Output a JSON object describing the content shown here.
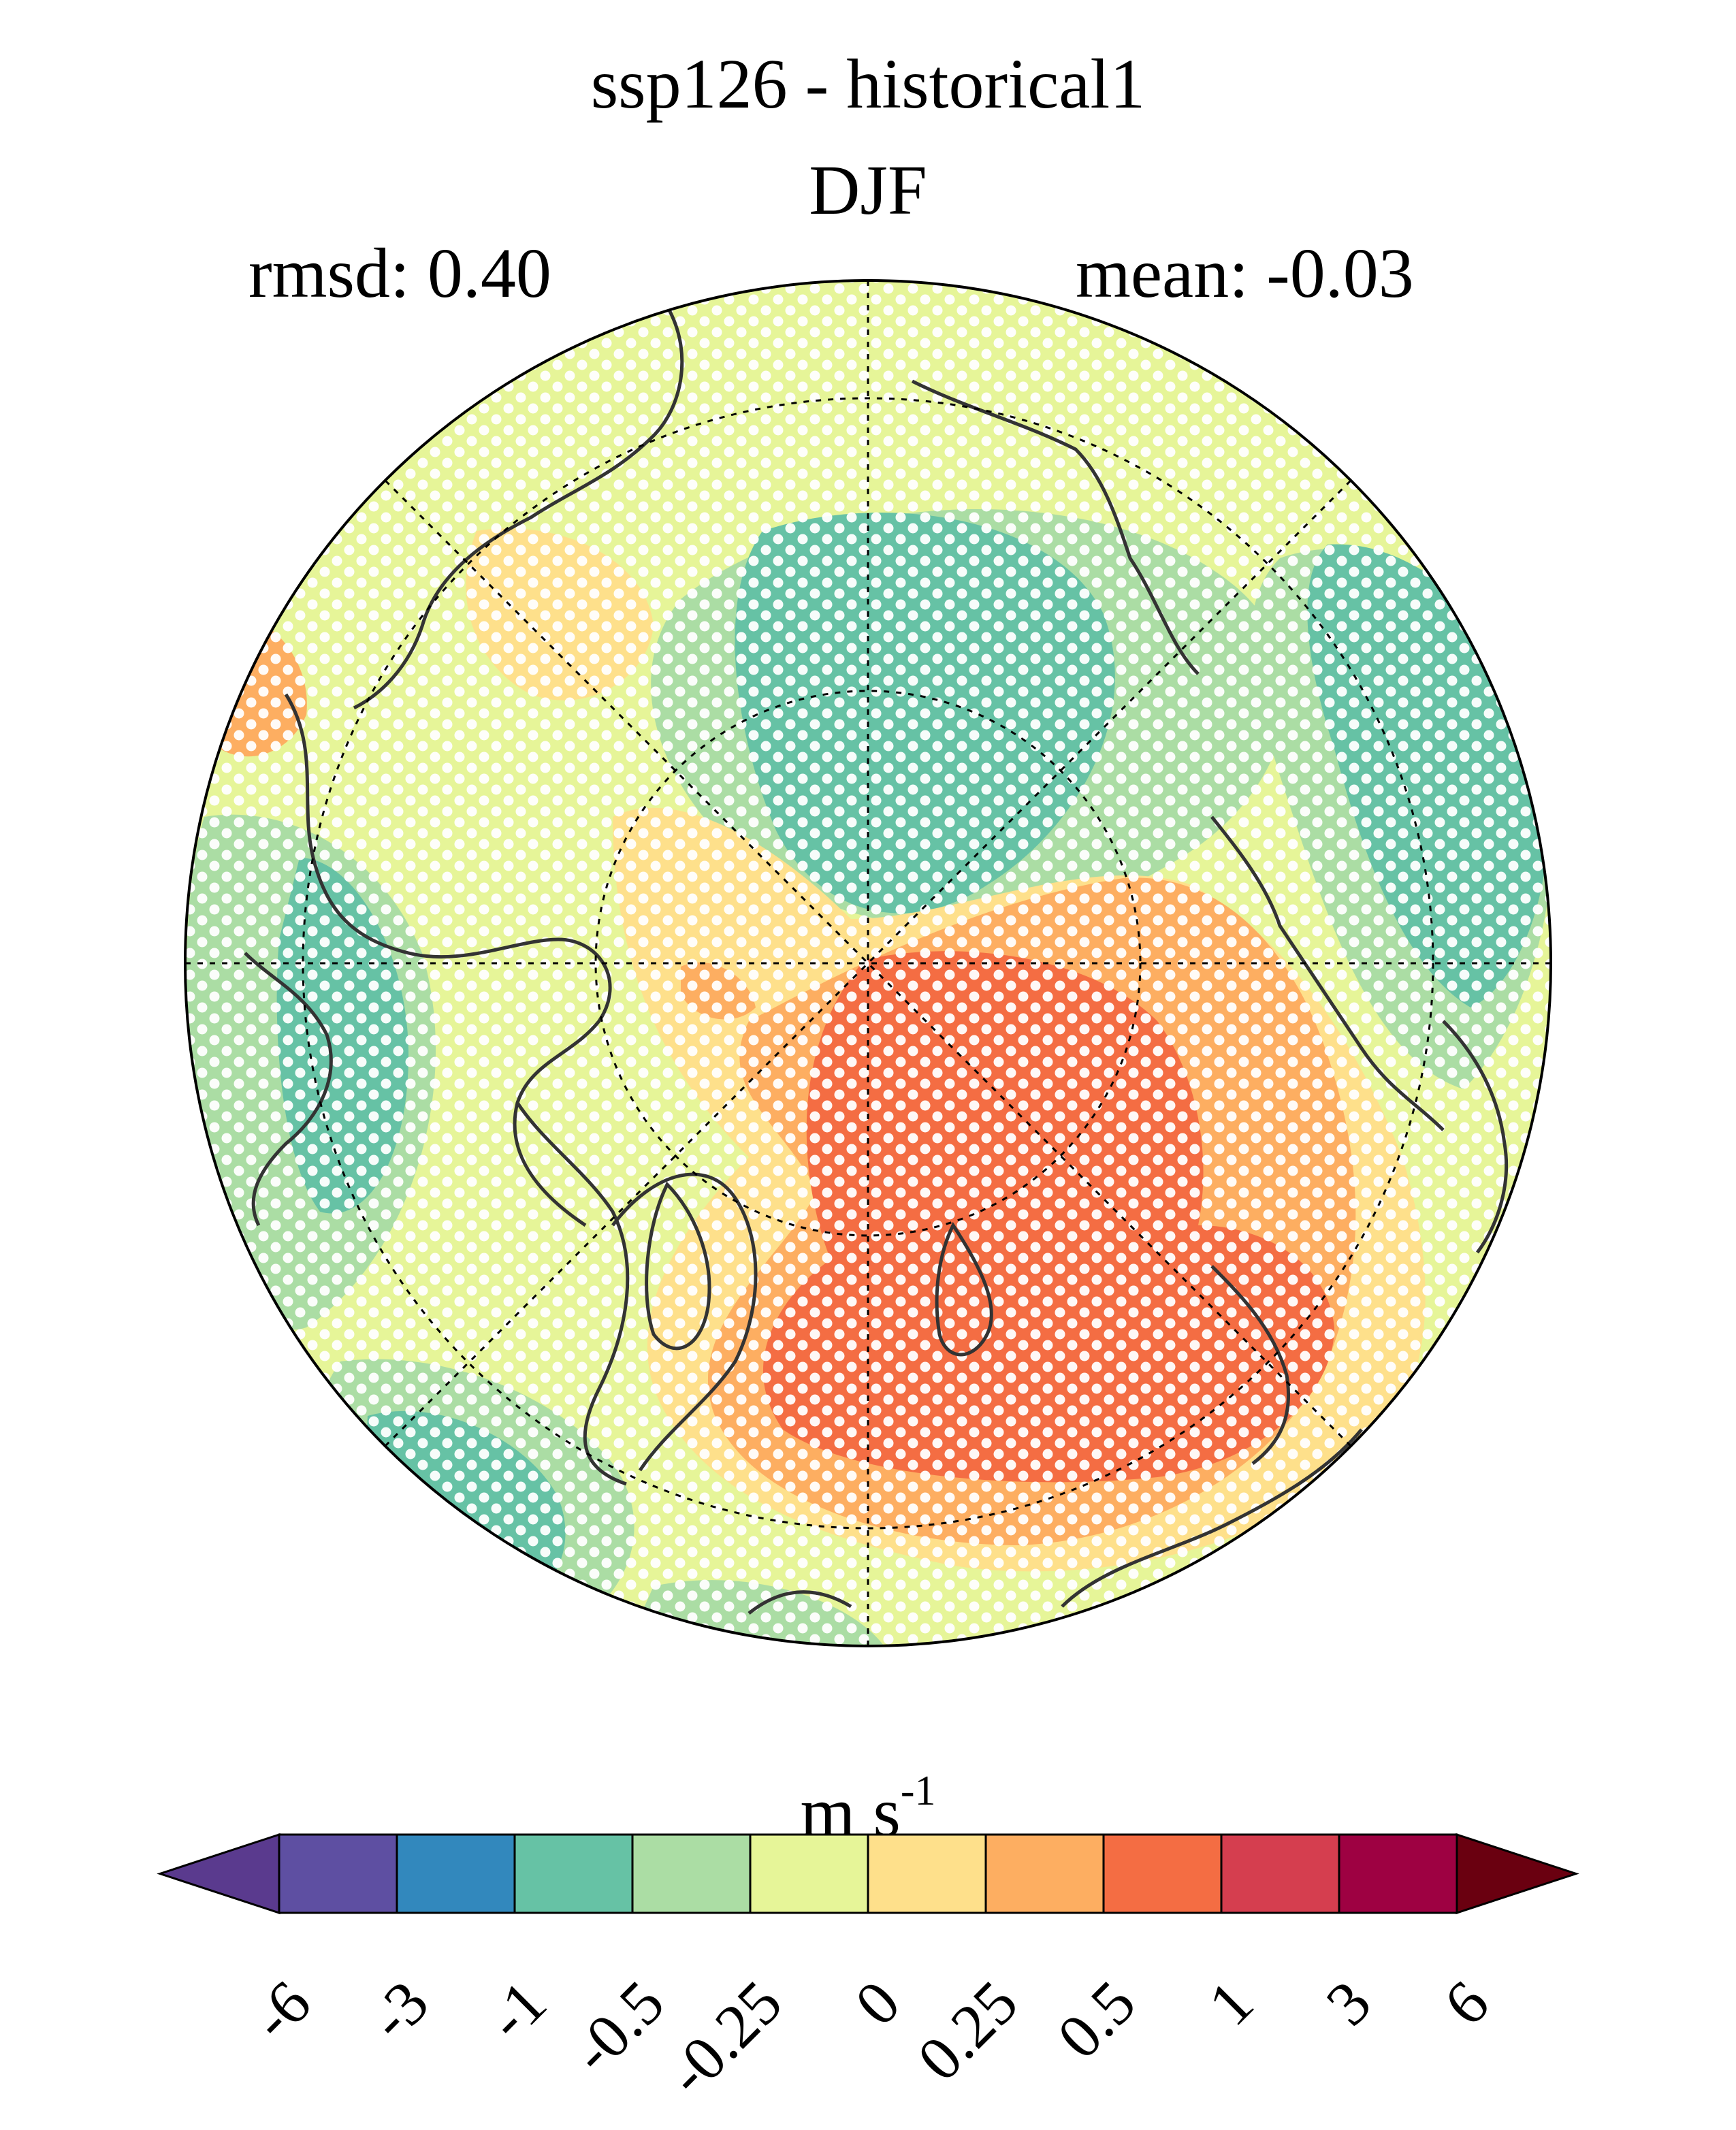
{
  "header": {
    "title": "ssp126 - historical1",
    "season": "DJF",
    "rmsd_label": "rmsd: 0.40",
    "mean_label": "mean: -0.03"
  },
  "colorbar": {
    "units_base": "m s",
    "units_exp": "-1",
    "ticks": [
      "-6",
      "-3",
      "-1",
      "-0.5",
      "-0.25",
      "0",
      "0.25",
      "0.5",
      "1",
      "3",
      "6"
    ],
    "colors": [
      "#5e4fa2",
      "#3288bd",
      "#66c2a5",
      "#abdda4",
      "#e6f598",
      "#fee08b",
      "#fdae61",
      "#f46d43",
      "#d53e4f",
      "#9e0142"
    ],
    "under_color": "#5a3a8e",
    "over_color": "#6a0010"
  },
  "map": {
    "projection": "north-polar-stereographic",
    "background_color": "#e6f598",
    "stipple_color": "#ffffff",
    "coast_color": "#333333"
  }
}
